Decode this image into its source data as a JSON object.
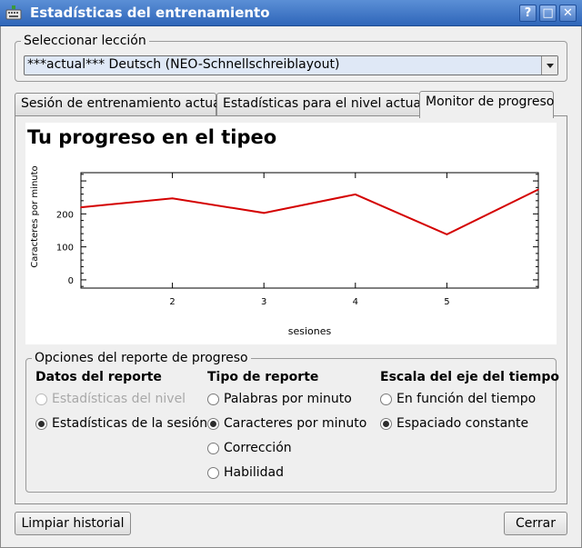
{
  "window": {
    "title": "Estadísticas del entrenamiento",
    "buttons": {
      "help": "?",
      "maximize": "□",
      "close": "✕"
    }
  },
  "lesson": {
    "group_label": "Seleccionar lección",
    "selected": "***actual***  Deutsch (NEO-Schnellschreiblayout)"
  },
  "tabs": [
    {
      "label": "Sesión de entrenamiento actual",
      "active": false
    },
    {
      "label": "Estadísticas para el nivel actual",
      "active": false
    },
    {
      "label": "Monitor de progreso",
      "active": true
    }
  ],
  "progress": {
    "title": "Tu progreso en el tipeo"
  },
  "chart_data": {
    "type": "line",
    "title": "",
    "xlabel": "sesiones",
    "ylabel": "Caracteres por minuto",
    "x": [
      1,
      2,
      3,
      4,
      5,
      6
    ],
    "x_ticks": [
      2,
      3,
      4,
      5
    ],
    "y_ticks": [
      0,
      100,
      200
    ],
    "xlim": [
      1,
      6
    ],
    "ylim": [
      -25,
      325
    ],
    "series": [
      {
        "values": [
          220,
          247,
          203,
          259,
          138,
          274
        ],
        "color": "#d40000"
      }
    ]
  },
  "options": {
    "group_label": "Opciones del reporte de progreso",
    "data_source": {
      "heading": "Datos del reporte",
      "items": [
        {
          "label": "Estadísticas del nivel",
          "selected": false,
          "enabled": false
        },
        {
          "label": "Estadísticas de la sesión",
          "selected": true,
          "enabled": true
        }
      ]
    },
    "report_type": {
      "heading": "Tipo de reporte",
      "items": [
        {
          "label": "Palabras por minuto",
          "selected": false,
          "enabled": true
        },
        {
          "label": "Caracteres por minuto",
          "selected": true,
          "enabled": true
        },
        {
          "label": "Corrección",
          "selected": false,
          "enabled": true
        },
        {
          "label": "Habilidad",
          "selected": false,
          "enabled": true
        }
      ]
    },
    "time_axis": {
      "heading": "Escala del eje del tiempo",
      "items": [
        {
          "label": "En función del tiempo",
          "selected": false,
          "enabled": true
        },
        {
          "label": "Espaciado constante",
          "selected": true,
          "enabled": true
        }
      ]
    }
  },
  "footer": {
    "clear_history": "Limpiar historial",
    "close": "Cerrar"
  }
}
